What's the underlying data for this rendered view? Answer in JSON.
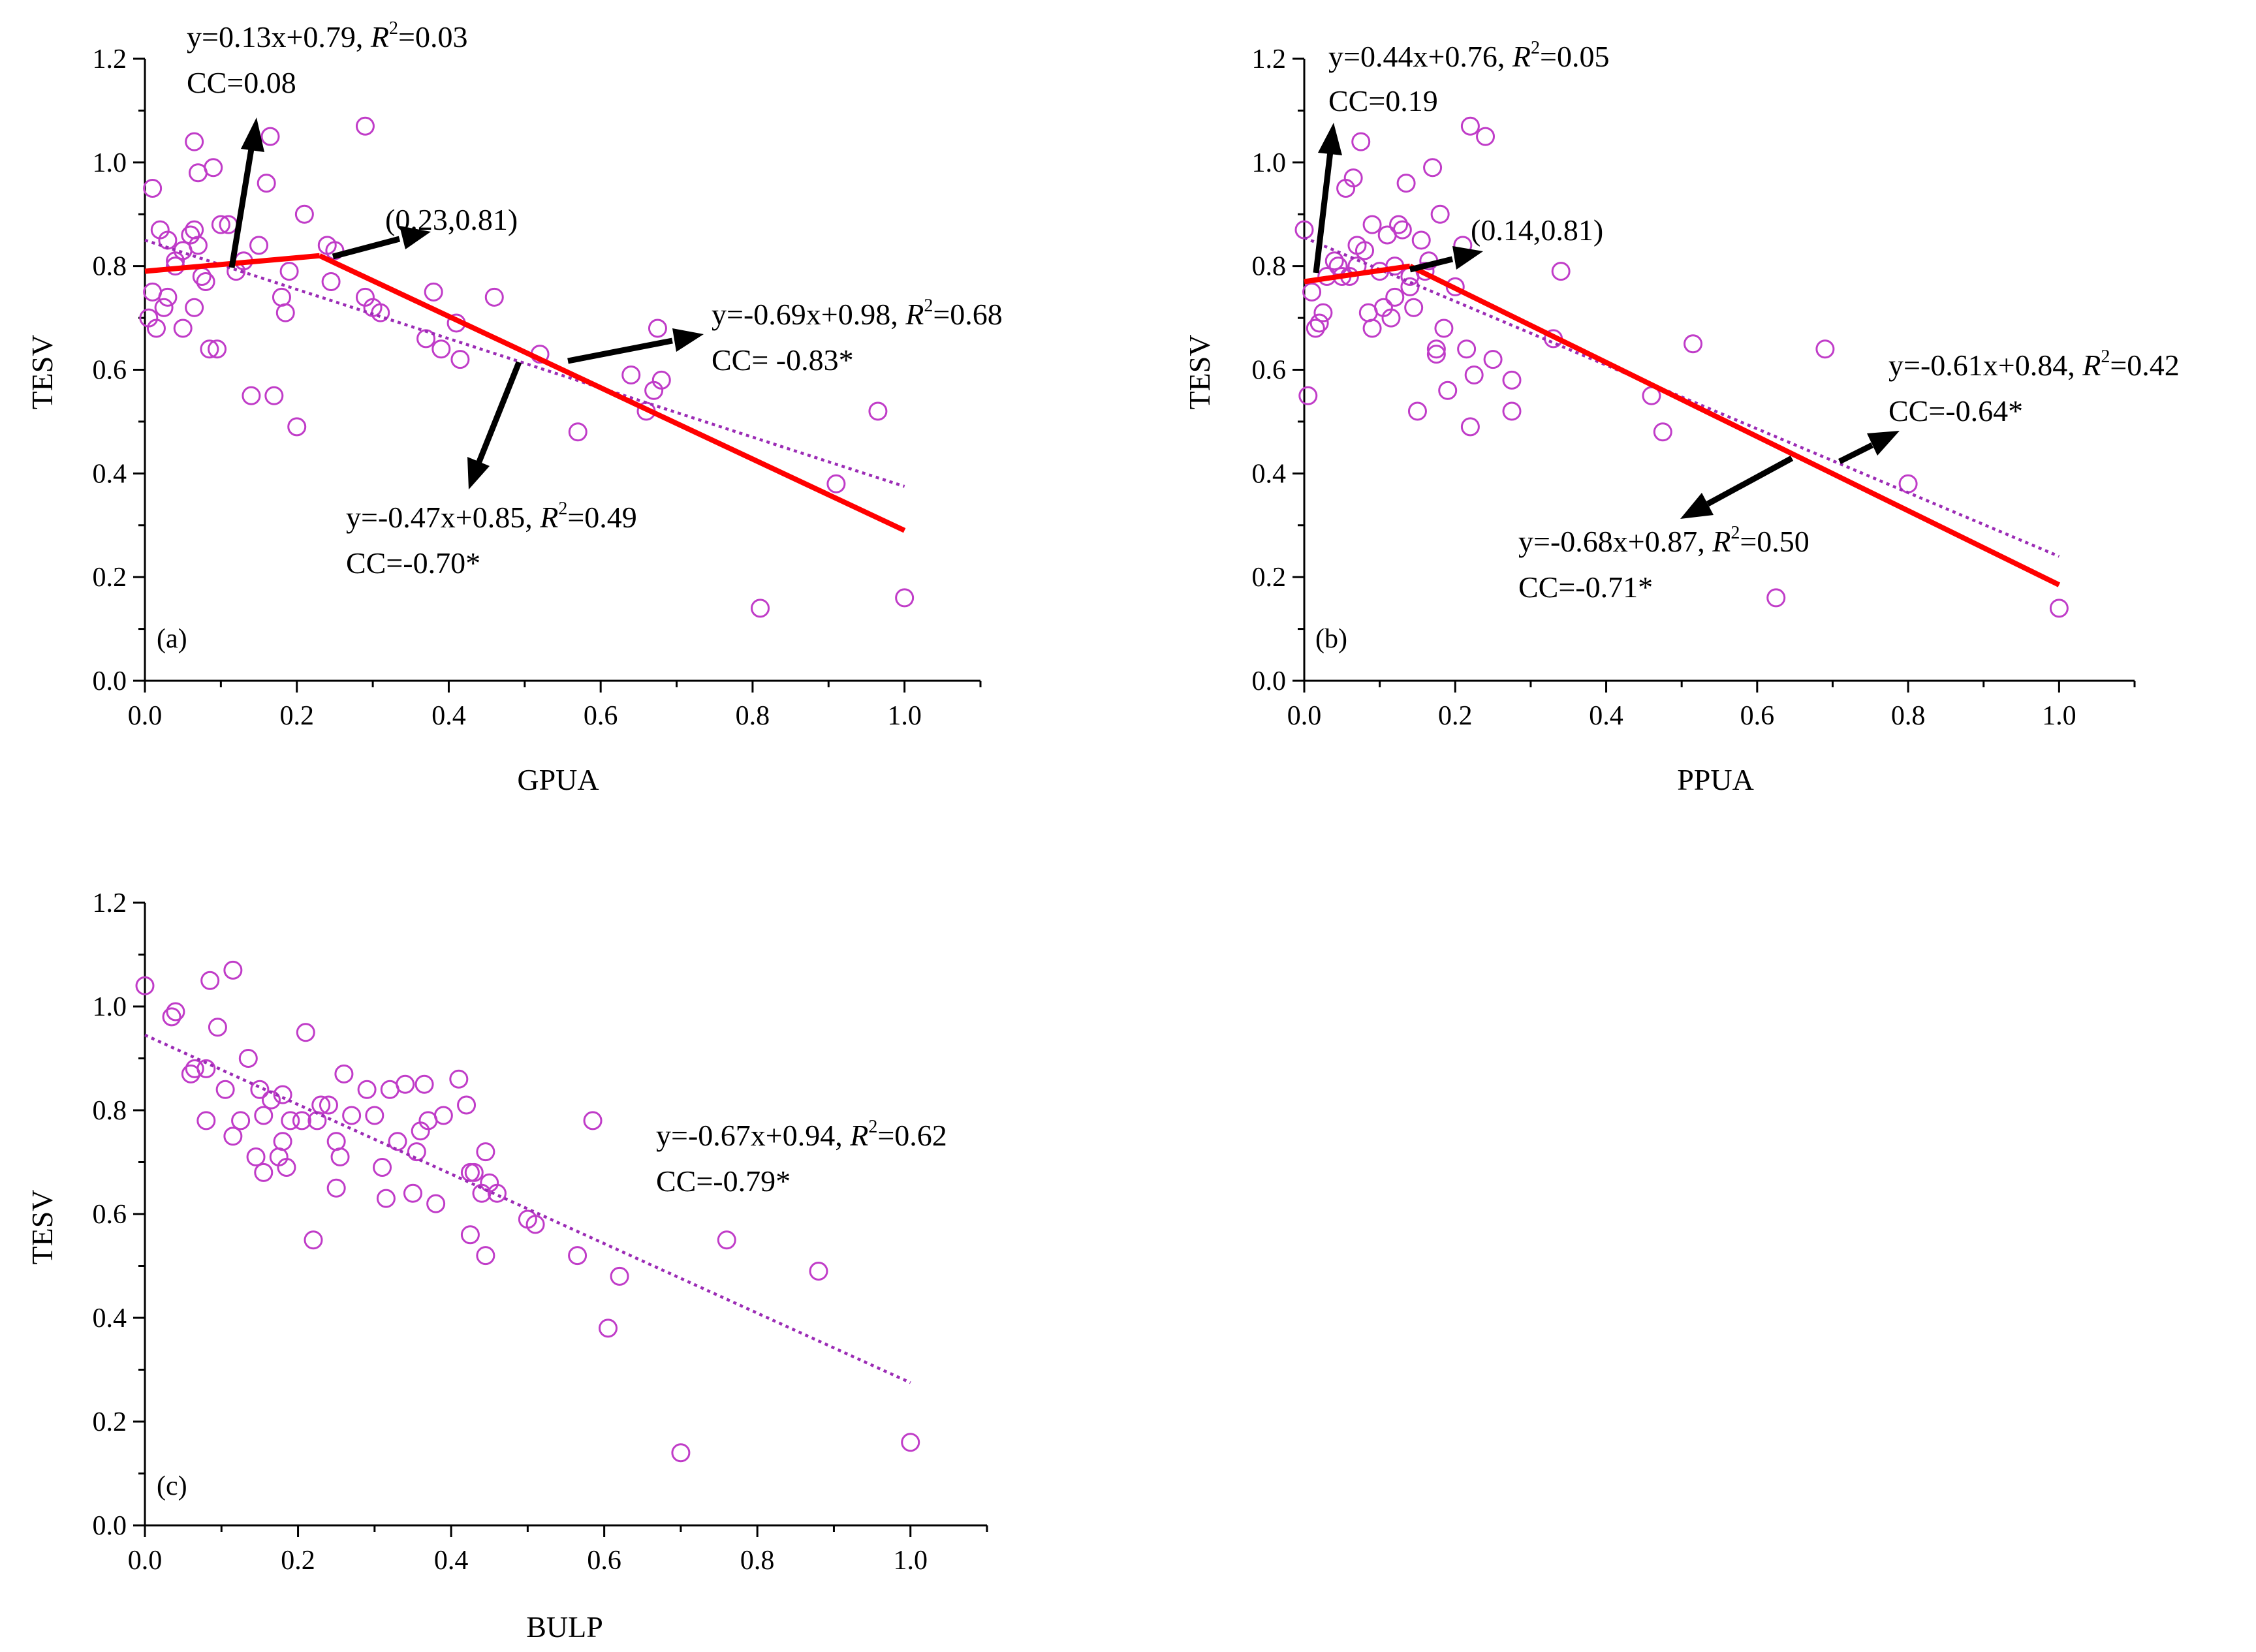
{
  "chart_data": [
    {
      "type": "scatter",
      "panel_label": "(a)",
      "xlabel": "GPUA",
      "ylabel": "TESV",
      "xlim": [
        0,
        1.1
      ],
      "ylim": [
        0,
        1.2
      ],
      "xticks": [
        "0.0",
        "0.2",
        "0.4",
        "0.6",
        "0.8",
        "1.0"
      ],
      "yticks": [
        "0.0",
        "0.2",
        "0.4",
        "0.6",
        "0.8",
        "1.0",
        "1.2"
      ],
      "points": [
        [
          0.01,
          0.95
        ],
        [
          0.02,
          0.87
        ],
        [
          0.03,
          0.85
        ],
        [
          0.015,
          0.68
        ],
        [
          0.01,
          0.75
        ],
        [
          0.025,
          0.72
        ],
        [
          0.03,
          0.74
        ],
        [
          0.04,
          0.81
        ],
        [
          0.05,
          0.68
        ],
        [
          0.06,
          0.86
        ],
        [
          0.065,
          0.87
        ],
        [
          0.07,
          0.84
        ],
        [
          0.075,
          0.78
        ],
        [
          0.08,
          0.77
        ],
        [
          0.065,
          0.72
        ],
        [
          0.085,
          0.64
        ],
        [
          0.09,
          0.99
        ],
        [
          0.095,
          0.64
        ],
        [
          0.065,
          1.04
        ],
        [
          0.07,
          0.98
        ],
        [
          0.1,
          0.88
        ],
        [
          0.11,
          0.88
        ],
        [
          0.12,
          0.79
        ],
        [
          0.13,
          0.81
        ],
        [
          0.14,
          0.55
        ],
        [
          0.15,
          0.84
        ],
        [
          0.16,
          0.96
        ],
        [
          0.165,
          1.05
        ],
        [
          0.17,
          0.55
        ],
        [
          0.18,
          0.74
        ],
        [
          0.185,
          0.71
        ],
        [
          0.19,
          0.79
        ],
        [
          0.2,
          0.49
        ],
        [
          0.21,
          0.9
        ],
        [
          0.24,
          0.84
        ],
        [
          0.245,
          0.77
        ],
        [
          0.25,
          0.83
        ],
        [
          0.29,
          1.07
        ],
        [
          0.29,
          0.74
        ],
        [
          0.3,
          0.72
        ],
        [
          0.31,
          0.71
        ],
        [
          0.38,
          0.75
        ],
        [
          0.37,
          0.66
        ],
        [
          0.39,
          0.64
        ],
        [
          0.41,
          0.69
        ],
        [
          0.415,
          0.62
        ],
        [
          0.46,
          0.74
        ],
        [
          0.52,
          0.63
        ],
        [
          0.57,
          0.48
        ],
        [
          0.64,
          0.59
        ],
        [
          0.66,
          0.52
        ],
        [
          0.67,
          0.56
        ],
        [
          0.675,
          0.68
        ],
        [
          0.68,
          0.58
        ],
        [
          0.81,
          0.14
        ],
        [
          0.91,
          0.38
        ],
        [
          0.965,
          0.52
        ],
        [
          1.0,
          0.16
        ],
        [
          0.005,
          0.7
        ],
        [
          0.04,
          0.8
        ],
        [
          0.05,
          0.83
        ]
      ],
      "trend_line": {
        "x": [
          0,
          1.0
        ],
        "y": [
          0.85,
          0.375
        ]
      },
      "piecewise": [
        {
          "x": [
            0,
            0.23
          ],
          "y": [
            0.79,
            0.82
          ]
        },
        {
          "x": [
            0.23,
            1.0
          ],
          "y": [
            0.82,
            0.29
          ]
        }
      ],
      "annotations": [
        {
          "line1": {
            "main": "y=0.13x+0.79, ",
            "r": "R",
            "sup": "2",
            "rest": "=0.03"
          },
          "line2": "CC=0.08"
        },
        {
          "text": "(0.23,0.81)"
        },
        {
          "line1": {
            "main": "y=-0.69x+0.98, ",
            "r": "R",
            "sup": "2",
            "rest": "=0.68"
          },
          "line2": "CC= -0.83*"
        },
        {
          "line1": {
            "main": "y=-0.47x+0.85, ",
            "r": "R",
            "sup": "2",
            "rest": "=0.49"
          },
          "line2": "CC=-0.70*"
        }
      ]
    },
    {
      "type": "scatter",
      "panel_label": "(b)",
      "xlabel": "PPUA",
      "ylabel": "TESV",
      "xlim": [
        0,
        1.1
      ],
      "ylim": [
        0,
        1.2
      ],
      "xticks": [
        "0.0",
        "0.2",
        "0.4",
        "0.6",
        "0.8",
        "1.0"
      ],
      "yticks": [
        "0.0",
        "0.2",
        "0.4",
        "0.6",
        "0.8",
        "1.0",
        "1.2"
      ],
      "points": [
        [
          0.0,
          0.87
        ],
        [
          0.005,
          0.55
        ],
        [
          0.01,
          0.75
        ],
        [
          0.015,
          0.68
        ],
        [
          0.02,
          0.69
        ],
        [
          0.025,
          0.71
        ],
        [
          0.03,
          0.78
        ],
        [
          0.04,
          0.81
        ],
        [
          0.045,
          0.8
        ],
        [
          0.05,
          0.78
        ],
        [
          0.055,
          0.95
        ],
        [
          0.06,
          0.78
        ],
        [
          0.065,
          0.97
        ],
        [
          0.07,
          0.84
        ],
        [
          0.075,
          1.04
        ],
        [
          0.08,
          0.83
        ],
        [
          0.085,
          0.71
        ],
        [
          0.09,
          0.88
        ],
        [
          0.09,
          0.68
        ],
        [
          0.1,
          0.79
        ],
        [
          0.105,
          0.72
        ],
        [
          0.11,
          0.86
        ],
        [
          0.115,
          0.7
        ],
        [
          0.12,
          0.74
        ],
        [
          0.125,
          0.88
        ],
        [
          0.13,
          0.87
        ],
        [
          0.135,
          0.96
        ],
        [
          0.14,
          0.78
        ],
        [
          0.145,
          0.72
        ],
        [
          0.15,
          0.52
        ],
        [
          0.155,
          0.85
        ],
        [
          0.16,
          0.79
        ],
        [
          0.165,
          0.81
        ],
        [
          0.17,
          0.99
        ],
        [
          0.175,
          0.64
        ],
        [
          0.175,
          0.63
        ],
        [
          0.18,
          0.9
        ],
        [
          0.185,
          0.68
        ],
        [
          0.19,
          0.56
        ],
        [
          0.2,
          0.76
        ],
        [
          0.21,
          0.84
        ],
        [
          0.215,
          0.64
        ],
        [
          0.22,
          1.07
        ],
        [
          0.22,
          0.49
        ],
        [
          0.225,
          0.59
        ],
        [
          0.24,
          1.05
        ],
        [
          0.25,
          0.62
        ],
        [
          0.275,
          0.58
        ],
        [
          0.275,
          0.52
        ],
        [
          0.33,
          0.66
        ],
        [
          0.34,
          0.79
        ],
        [
          0.46,
          0.55
        ],
        [
          0.475,
          0.48
        ],
        [
          0.515,
          0.65
        ],
        [
          0.625,
          0.16
        ],
        [
          0.69,
          0.64
        ],
        [
          0.8,
          0.38
        ],
        [
          1.0,
          0.14
        ],
        [
          0.12,
          0.8
        ],
        [
          0.14,
          0.76
        ],
        [
          0.07,
          0.8
        ]
      ],
      "trend_line": {
        "x": [
          0,
          1.0
        ],
        "y": [
          0.855,
          0.24
        ]
      },
      "piecewise": [
        {
          "x": [
            0,
            0.14
          ],
          "y": [
            0.77,
            0.8
          ]
        },
        {
          "x": [
            0.14,
            1.0
          ],
          "y": [
            0.8,
            0.185
          ]
        }
      ],
      "annotations": [
        {
          "line1": {
            "main": "y=0.44x+0.76, ",
            "r": "R",
            "sup": "2",
            "rest": "=0.05"
          },
          "line2": "CC=0.19"
        },
        {
          "text": "(0.14,0.81)"
        },
        {
          "line1": {
            "main": "y=-0.61x+0.84, ",
            "r": "R",
            "sup": "2",
            "rest": "=0.42"
          },
          "line2": "CC=-0.64*"
        },
        {
          "line1": {
            "main": "y=-0.68x+0.87, ",
            "r": "R",
            "sup": "2",
            "rest": "=0.50"
          },
          "line2": "CC=-0.71*"
        }
      ]
    },
    {
      "type": "scatter",
      "panel_label": "(c)",
      "xlabel": "BULP",
      "ylabel": "TESV",
      "xlim": [
        0,
        1.1
      ],
      "ylim": [
        0,
        1.2
      ],
      "xticks": [
        "0.0",
        "0.2",
        "0.4",
        "0.6",
        "0.8",
        "1.0"
      ],
      "yticks": [
        "0.0",
        "0.2",
        "0.4",
        "0.6",
        "0.8",
        "1.0",
        "1.2"
      ],
      "points": [
        [
          0.0,
          1.04
        ],
        [
          0.035,
          0.98
        ],
        [
          0.04,
          0.99
        ],
        [
          0.06,
          0.87
        ],
        [
          0.065,
          0.88
        ],
        [
          0.08,
          0.88
        ],
        [
          0.08,
          0.78
        ],
        [
          0.085,
          1.05
        ],
        [
          0.095,
          0.96
        ],
        [
          0.105,
          0.84
        ],
        [
          0.115,
          0.75
        ],
        [
          0.115,
          1.07
        ],
        [
          0.125,
          0.78
        ],
        [
          0.135,
          0.9
        ],
        [
          0.145,
          0.71
        ],
        [
          0.15,
          0.84
        ],
        [
          0.155,
          0.79
        ],
        [
          0.155,
          0.68
        ],
        [
          0.165,
          0.82
        ],
        [
          0.175,
          0.71
        ],
        [
          0.18,
          0.74
        ],
        [
          0.18,
          0.83
        ],
        [
          0.185,
          0.69
        ],
        [
          0.19,
          0.78
        ],
        [
          0.205,
          0.78
        ],
        [
          0.21,
          0.95
        ],
        [
          0.22,
          0.55
        ],
        [
          0.225,
          0.78
        ],
        [
          0.23,
          0.81
        ],
        [
          0.24,
          0.81
        ],
        [
          0.25,
          0.74
        ],
        [
          0.25,
          0.65
        ],
        [
          0.255,
          0.71
        ],
        [
          0.26,
          0.87
        ],
        [
          0.27,
          0.79
        ],
        [
          0.29,
          0.84
        ],
        [
          0.3,
          0.79
        ],
        [
          0.31,
          0.69
        ],
        [
          0.315,
          0.63
        ],
        [
          0.32,
          0.84
        ],
        [
          0.33,
          0.74
        ],
        [
          0.34,
          0.85
        ],
        [
          0.35,
          0.64
        ],
        [
          0.355,
          0.72
        ],
        [
          0.36,
          0.76
        ],
        [
          0.365,
          0.85
        ],
        [
          0.37,
          0.78
        ],
        [
          0.38,
          0.62
        ],
        [
          0.39,
          0.79
        ],
        [
          0.41,
          0.86
        ],
        [
          0.42,
          0.81
        ],
        [
          0.425,
          0.68
        ],
        [
          0.425,
          0.56
        ],
        [
          0.43,
          0.68
        ],
        [
          0.44,
          0.64
        ],
        [
          0.445,
          0.52
        ],
        [
          0.445,
          0.72
        ],
        [
          0.45,
          0.66
        ],
        [
          0.46,
          0.64
        ],
        [
          0.5,
          0.59
        ],
        [
          0.51,
          0.58
        ],
        [
          0.565,
          0.52
        ],
        [
          0.585,
          0.78
        ],
        [
          0.605,
          0.38
        ],
        [
          0.62,
          0.48
        ],
        [
          0.7,
          0.14
        ],
        [
          0.76,
          0.55
        ],
        [
          0.88,
          0.49
        ],
        [
          1.0,
          0.16
        ]
      ],
      "trend_line": {
        "x": [
          0,
          1.0
        ],
        "y": [
          0.945,
          0.275
        ]
      },
      "annotations": [
        {
          "line1": {
            "main": "y=-0.67x+0.94, ",
            "r": "R",
            "sup": "2",
            "rest": "=0.62"
          },
          "line2": "CC=-0.79*"
        }
      ]
    }
  ]
}
